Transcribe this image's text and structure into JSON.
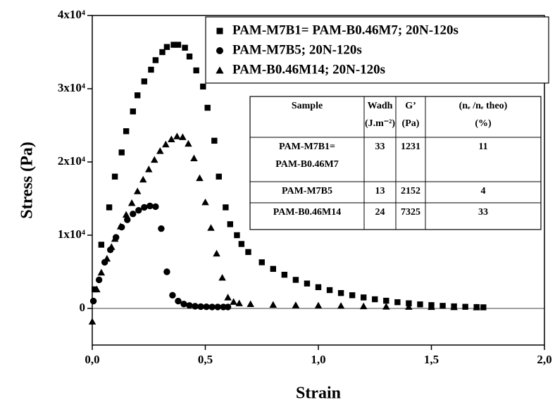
{
  "chart_data": {
    "type": "scatter",
    "xlabel": "Strain",
    "ylabel": "Stress (Pa)",
    "xlim": [
      0,
      2
    ],
    "ylim": [
      -5000,
      40000
    ],
    "xticks": [
      {
        "value": 0,
        "label": "0,0"
      },
      {
        "value": 0.5,
        "label": "0,5"
      },
      {
        "value": 1,
        "label": "1,0"
      },
      {
        "value": 1.5,
        "label": "1,5"
      },
      {
        "value": 2,
        "label": "2,0"
      }
    ],
    "yticks": [
      0,
      {
        "value": 10000,
        "label": "1x10⁴"
      },
      {
        "value": 20000,
        "label": "2x10⁴"
      },
      {
        "value": 30000,
        "label": "3x10⁴"
      },
      {
        "value": 40000,
        "label": "4x10⁴"
      }
    ],
    "legend": "upper right",
    "series": [
      {
        "name": "PAM-M7B1= PAM-B0.46M7; 20N-120s",
        "color": "#000000",
        "marker": "square",
        "x": [
          0.01,
          0.04,
          0.075,
          0.1,
          0.13,
          0.15,
          0.18,
          0.2,
          0.23,
          0.26,
          0.28,
          0.31,
          0.33,
          0.36,
          0.38,
          0.41,
          0.43,
          0.46,
          0.49,
          0.51,
          0.54,
          0.56,
          0.59,
          0.61,
          0.64,
          0.66,
          0.69,
          0.75,
          0.8,
          0.85,
          0.9,
          0.95,
          1.0,
          1.05,
          1.1,
          1.15,
          1.2,
          1.25,
          1.3,
          1.35,
          1.4,
          1.45,
          1.5,
          1.55,
          1.6,
          1.65,
          1.7,
          1.73
        ],
        "values": [
          2600,
          8700,
          13800,
          18000,
          21300,
          24200,
          26900,
          29100,
          31000,
          32600,
          33900,
          35000,
          35700,
          36000,
          36000,
          35600,
          34400,
          32500,
          30300,
          27400,
          22900,
          18000,
          13800,
          11500,
          10000,
          8800,
          7700,
          6300,
          5400,
          4600,
          3900,
          3400,
          2900,
          2500,
          2100,
          1800,
          1500,
          1250,
          1050,
          850,
          700,
          550,
          450,
          350,
          280,
          220,
          180,
          150
        ]
      },
      {
        "name": "PAM-M7B5; 20N-120s",
        "color": "#000000",
        "marker": "circle",
        "x": [
          0.005,
          0.03,
          0.055,
          0.08,
          0.105,
          0.13,
          0.155,
          0.18,
          0.205,
          0.23,
          0.255,
          0.28,
          0.305,
          0.33,
          0.355,
          0.38,
          0.405,
          0.43,
          0.455,
          0.48,
          0.505,
          0.53,
          0.555,
          0.58,
          0.6
        ],
        "values": [
          1000,
          3900,
          6300,
          8000,
          9700,
          11100,
          12100,
          12900,
          13400,
          13800,
          14000,
          13900,
          10900,
          5000,
          1800,
          1000,
          600,
          400,
          300,
          250,
          220,
          200,
          200,
          200,
          200
        ]
      },
      {
        "name": "PAM-B0.46M14; 20N-120s",
        "color": "#000000",
        "marker": "triangle",
        "x": [
          0,
          0.02,
          0.04,
          0.065,
          0.085,
          0.1,
          0.125,
          0.15,
          0.175,
          0.2,
          0.225,
          0.25,
          0.275,
          0.3,
          0.325,
          0.35,
          0.375,
          0.4,
          0.425,
          0.45,
          0.475,
          0.5,
          0.525,
          0.55,
          0.575,
          0.6,
          0.625,
          0.65,
          0.7,
          0.8,
          0.9,
          1.0,
          1.1,
          1.2,
          1.3,
          1.4,
          1.5,
          1.6,
          1.7
        ],
        "values": [
          -1800,
          2600,
          4900,
          6800,
          8400,
          9500,
          11200,
          12800,
          14400,
          16000,
          17600,
          19000,
          20300,
          21500,
          22400,
          23100,
          23500,
          23400,
          22500,
          20500,
          17800,
          14500,
          11000,
          7500,
          4200,
          1500,
          900,
          700,
          600,
          500,
          450,
          400,
          350,
          300,
          250,
          220,
          200,
          180,
          150
        ]
      }
    ]
  },
  "table": {
    "header": [
      [
        "Sample"
      ],
      [
        "Wadh",
        "(J.m⁻²)"
      ],
      [
        "G’",
        "(Pa)"
      ],
      [
        "(nₑ /nₑ theo)",
        "(%)"
      ]
    ],
    "rows": [
      [
        [
          "PAM-M7B1=",
          "PAM-B0.46M7"
        ],
        33,
        1231,
        11
      ],
      [
        [
          "PAM-M7B5"
        ],
        13,
        2152,
        4
      ],
      [
        [
          "PAM-B0.46M14"
        ],
        24,
        7325,
        33
      ]
    ]
  }
}
